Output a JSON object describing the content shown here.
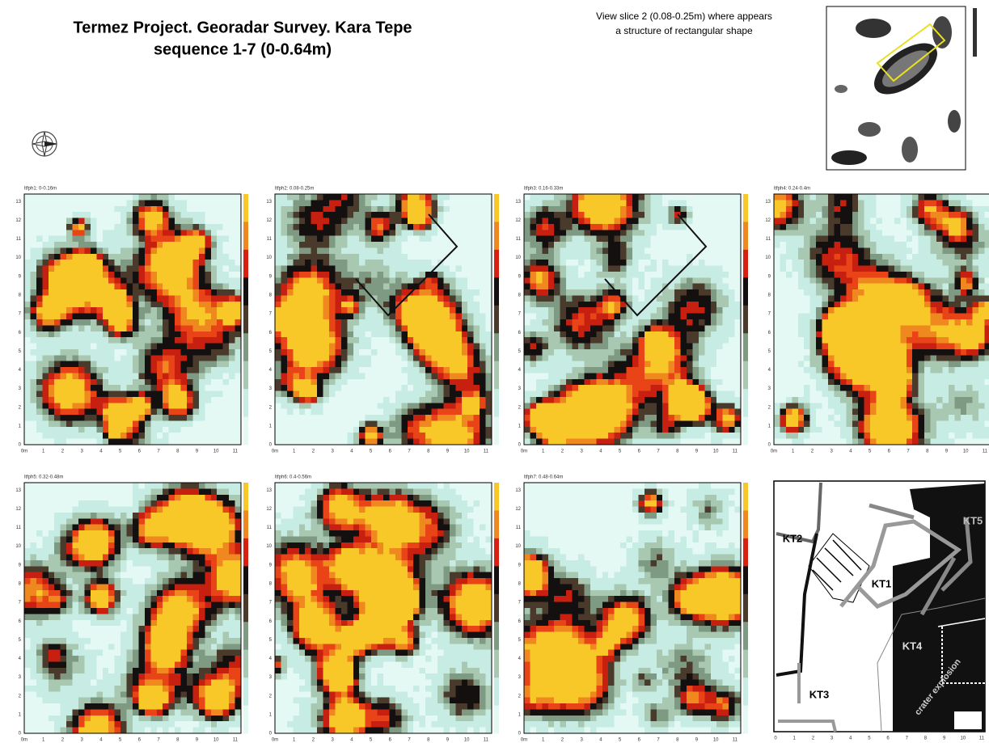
{
  "header": {
    "title_lines": [
      "Termez Project. Georadar Survey. Kara Tepe",
      "sequence 1-7 (0-0.64m)"
    ],
    "note_lines": [
      "View slice 2 (0.08-0.25m) where appears",
      "a structure of rectangular shape"
    ]
  },
  "slices": {
    "labels": [
      "ltfph1: 0-0.16m",
      "ltfph2: 0.08-0.25m",
      "ltfph3: 0.16-0.33m",
      "ltfph4: 0.24-0.4m",
      "ltfph5: 0.32-0.48m",
      "ltfph6: 0.4-0.56m",
      "ltfph7: 0.48-0.64m"
    ],
    "yticks": [
      0,
      1,
      2,
      3,
      4,
      5,
      6,
      7,
      8,
      9,
      10,
      11,
      12,
      13
    ],
    "xticks": [
      "0m",
      1,
      2,
      3,
      4,
      5,
      6,
      7,
      8,
      9,
      10,
      11
    ]
  },
  "site_map": {
    "labels": [
      "KT1",
      "KT2",
      "KT3",
      "KT4",
      "KT5"
    ],
    "crater": "crater explosion",
    "xticks": [
      0,
      1,
      2,
      3,
      4,
      5,
      6,
      7,
      8,
      9,
      10,
      11
    ]
  }
}
